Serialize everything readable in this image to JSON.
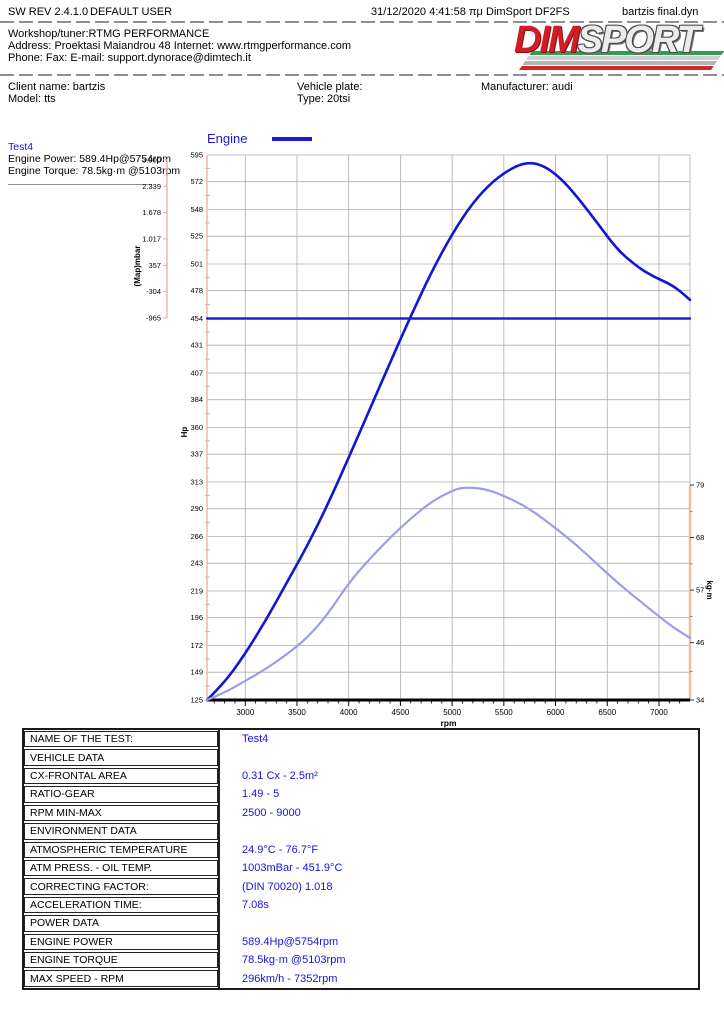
{
  "header": {
    "sw_rev": "SW REV 2.4.1.0",
    "user": "DEFAULT USER",
    "datetime": "31/12/2020 4:41:58 πμ",
    "app": "DimSport DF2FS",
    "filename": "bartzis final.dyn"
  },
  "workshop": {
    "line1": "Workshop/tuner:RTMG PERFORMANCE",
    "line2": "Address: Proektasi Maiandrou 48 Internet: www.rtmgperformance.com",
    "line3": "Phone:  Fax:  E-mail: support.dynorace@dimtech.it"
  },
  "logo": {
    "dim": "DIM",
    "sport": "SPORT"
  },
  "client": {
    "name": "Client name: bartzis",
    "model": "Model: tts",
    "plate": "Vehicle plate:",
    "type": "Type: 20tsi",
    "manufacturer": "Manufacturer: audi"
  },
  "test_info": {
    "name": "Test4",
    "power_line": "Engine Power: 589.4Hp@5754rpm",
    "torque_line": "Engine Torque: 78.5kg·m @5103rpm"
  },
  "chart_data": {
    "type": "line",
    "legend": "Engine",
    "xlabel": "rpm",
    "x_range": [
      2630,
      7300
    ],
    "x_ticks": [
      3000,
      3500,
      4000,
      4500,
      5000,
      5500,
      6000,
      6500,
      7000
    ],
    "axes": {
      "hp": {
        "label": "Hp",
        "ticks": [
          595,
          572,
          548,
          525,
          501,
          478,
          454,
          431,
          407,
          384,
          360,
          337,
          313,
          290,
          266,
          243,
          219,
          196,
          172,
          149,
          125
        ]
      },
      "kgm": {
        "label": "kg·m",
        "ticks": [
          79,
          68,
          57,
          46,
          34
        ]
      },
      "map": {
        "label": "(Map)mbar",
        "ticks": [
          "3.000",
          "2.339",
          "1.678",
          "1.017",
          "357",
          "-304",
          "-965"
        ]
      }
    },
    "colors": {
      "power": "#1414d6",
      "torque": "#9c9ce8",
      "flat": "#2020d4",
      "grid": "#aeaeae",
      "pink_axis": "#f2a0a0",
      "peach_axis": "#f0bc9a"
    },
    "series": [
      {
        "name": "engine-power",
        "axis": "hp",
        "color": "#1414d6",
        "width": 2.6,
        "points": [
          [
            2630,
            125
          ],
          [
            2800,
            140
          ],
          [
            3000,
            165
          ],
          [
            3200,
            194
          ],
          [
            3400,
            226
          ],
          [
            3600,
            258
          ],
          [
            3800,
            294
          ],
          [
            4000,
            334
          ],
          [
            4200,
            375
          ],
          [
            4400,
            416
          ],
          [
            4600,
            456
          ],
          [
            4800,
            494
          ],
          [
            5000,
            527
          ],
          [
            5200,
            554
          ],
          [
            5400,
            573
          ],
          [
            5600,
            585
          ],
          [
            5754,
            589
          ],
          [
            5900,
            585
          ],
          [
            6050,
            575
          ],
          [
            6200,
            560
          ],
          [
            6400,
            537
          ],
          [
            6600,
            513
          ],
          [
            6800,
            498
          ],
          [
            6950,
            490
          ],
          [
            7100,
            484
          ],
          [
            7200,
            478
          ],
          [
            7300,
            470
          ]
        ]
      },
      {
        "name": "engine-torque",
        "axis": "kgm",
        "color": "#9c9ce8",
        "width": 2.2,
        "points": [
          [
            2630,
            34
          ],
          [
            2800,
            35.5
          ],
          [
            3000,
            38
          ],
          [
            3200,
            40.5
          ],
          [
            3400,
            43.5
          ],
          [
            3600,
            47
          ],
          [
            3800,
            52
          ],
          [
            4000,
            58.5
          ],
          [
            4200,
            63.5
          ],
          [
            4400,
            68
          ],
          [
            4600,
            72
          ],
          [
            4800,
            75.5
          ],
          [
            5000,
            77.8
          ],
          [
            5103,
            78.5
          ],
          [
            5300,
            78.3
          ],
          [
            5500,
            76.8
          ],
          [
            5754,
            74
          ],
          [
            6000,
            70
          ],
          [
            6200,
            66.5
          ],
          [
            6400,
            62.5
          ],
          [
            6600,
            58.5
          ],
          [
            6800,
            55
          ],
          [
            7000,
            51.5
          ],
          [
            7150,
            49
          ],
          [
            7300,
            47
          ]
        ]
      },
      {
        "name": "map-flat-line",
        "axis": "hp",
        "color": "#2020d4",
        "width": 2.4,
        "points": [
          [
            2630,
            454
          ],
          [
            7300,
            454
          ]
        ]
      }
    ]
  },
  "table": {
    "rows": [
      {
        "type": "field",
        "label": "NAME OF THE TEST:",
        "value": "Test4"
      },
      {
        "type": "section",
        "label": "VEHICLE DATA",
        "value": ""
      },
      {
        "type": "field",
        "label": "CX-FRONTAL AREA",
        "value": "0.31 Cx - 2.5m²"
      },
      {
        "type": "field",
        "label": "RATIO-GEAR",
        "value": "1.49 - 5"
      },
      {
        "type": "field",
        "label": "RPM MIN-MAX",
        "value": "2500 - 9000"
      },
      {
        "type": "section",
        "label": "ENVIRONMENT DATA",
        "value": ""
      },
      {
        "type": "field",
        "label": "ATMOSPHERIC TEMPERATURE",
        "value": "24.9°C - 76.7°F"
      },
      {
        "type": "field",
        "label": "ATM PRESS. - OIL TEMP.",
        "value": "1003mBar - 451.9°C"
      },
      {
        "type": "field",
        "label": "CORRECTING FACTOR:",
        "value": "(DIN 70020) 1.018"
      },
      {
        "type": "field",
        "label": "ACCELERATION TIME:",
        "value": "7.08s"
      },
      {
        "type": "section",
        "label": "POWER DATA",
        "value": ""
      },
      {
        "type": "field",
        "label": "ENGINE POWER",
        "value": "589.4Hp@5754rpm"
      },
      {
        "type": "field",
        "label": "ENGINE TORQUE",
        "value": "78.5kg·m @5103rpm"
      },
      {
        "type": "field",
        "label": "MAX SPEED - RPM",
        "value": "296km/h - 7352rpm"
      }
    ]
  }
}
